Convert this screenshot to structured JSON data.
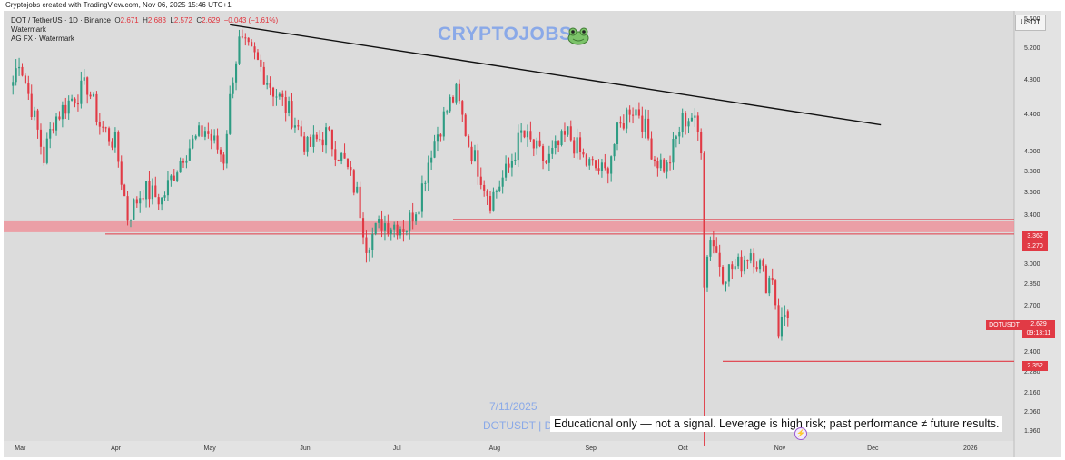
{
  "header": {
    "created_by": "Cryptojobs created with TradingView.com, Nov 06, 2025 15:46 UTC+1"
  },
  "legend": {
    "symbol": "DOT / TetherUS · 1D · Binance",
    "open_label": "O",
    "open": "2.671",
    "high_label": "H",
    "high": "2.683",
    "low_label": "L",
    "low": "2.572",
    "close_label": "C",
    "close": "2.629",
    "change": "−0.043 (−1.61%)",
    "watermark_line1": "Watermark",
    "watermark_line2": "AG FX · Watermark"
  },
  "logo": {
    "text": "CRYPTOJOBS",
    "icon": "frog-icon"
  },
  "currency": "USDT",
  "watermark": {
    "date": "7/11/2025",
    "symbol": "DOTUSDT | D"
  },
  "disclaimer": "Educational only — not a signal. Leverage is high risk; past performance ≠ future results.",
  "colors": {
    "up": "#2e9c83",
    "down": "#e13a45",
    "zone": "#f08b94",
    "trendline": "#111111",
    "accent": "#8aa9e8"
  },
  "badges": {
    "zone_top": "3.362",
    "zone_bottom": "3.270",
    "support": "2.352",
    "symbol_tag": "DOTUSDT",
    "last_price": "2.629",
    "countdown": "09:13:11"
  },
  "chart_data": {
    "type": "candlestick",
    "symbol": "DOTUSDT",
    "timeframe": "1D",
    "scale": "log",
    "y_ticks": [
      "5.600",
      "5.200",
      "4.800",
      "4.400",
      "4.000",
      "3.800",
      "3.600",
      "3.400",
      "3.200",
      "3.000",
      "2.850",
      "2.700",
      "2.550",
      "2.400",
      "2.280",
      "2.160",
      "2.060",
      "1.960"
    ],
    "x_ticks": [
      "Mar",
      "Apr",
      "May",
      "Jun",
      "Jul",
      "Aug",
      "Sep",
      "Oct",
      "Nov",
      "Dec",
      "2026"
    ],
    "ylim": [
      1.92,
      5.75
    ],
    "anchors": [
      [
        "2025-03-01",
        4.8
      ],
      [
        "2025-03-03",
        5.1
      ],
      [
        "2025-03-07",
        4.5
      ],
      [
        "2025-03-11",
        3.95
      ],
      [
        "2025-03-14",
        4.35
      ],
      [
        "2025-03-20",
        4.6
      ],
      [
        "2025-03-25",
        4.75
      ],
      [
        "2025-03-29",
        4.3
      ],
      [
        "2025-04-03",
        4.1
      ],
      [
        "2025-04-07",
        3.4
      ],
      [
        "2025-04-12",
        3.65
      ],
      [
        "2025-04-18",
        3.55
      ],
      [
        "2025-04-25",
        4.0
      ],
      [
        "2025-05-02",
        4.25
      ],
      [
        "2025-05-08",
        3.95
      ],
      [
        "2025-05-11",
        4.9
      ],
      [
        "2025-05-13",
        5.3
      ],
      [
        "2025-05-18",
        5.1
      ],
      [
        "2025-05-24",
        4.7
      ],
      [
        "2025-05-30",
        4.4
      ],
      [
        "2025-06-04",
        4.05
      ],
      [
        "2025-06-10",
        4.2
      ],
      [
        "2025-06-16",
        3.9
      ],
      [
        "2025-06-20",
        3.6
      ],
      [
        "2025-06-23",
        3.18
      ],
      [
        "2025-06-28",
        3.35
      ],
      [
        "2025-07-06",
        3.32
      ],
      [
        "2025-07-10",
        3.55
      ],
      [
        "2025-07-14",
        4.05
      ],
      [
        "2025-07-20",
        4.55
      ],
      [
        "2025-07-22",
        4.65
      ],
      [
        "2025-07-26",
        4.1
      ],
      [
        "2025-08-02",
        3.55
      ],
      [
        "2025-08-08",
        3.85
      ],
      [
        "2025-08-12",
        4.2
      ],
      [
        "2025-08-15",
        4.1
      ],
      [
        "2025-08-20",
        3.9
      ],
      [
        "2025-08-27",
        4.2
      ],
      [
        "2025-09-02",
        3.9
      ],
      [
        "2025-09-08",
        3.8
      ],
      [
        "2025-09-12",
        4.2
      ],
      [
        "2025-09-16",
        4.5
      ],
      [
        "2025-09-19",
        4.45
      ],
      [
        "2025-09-24",
        3.95
      ],
      [
        "2025-09-28",
        3.85
      ],
      [
        "2025-10-03",
        4.35
      ],
      [
        "2025-10-06",
        4.4
      ],
      [
        "2025-10-09",
        4.1
      ],
      [
        "2025-10-10",
        2.9
      ],
      [
        "2025-10-12",
        3.25
      ],
      [
        "2025-10-16",
        2.95
      ],
      [
        "2025-10-21",
        3.0
      ],
      [
        "2025-10-25",
        3.12
      ],
      [
        "2025-10-28",
        3.0
      ],
      [
        "2025-10-30",
        2.88
      ],
      [
        "2025-11-01",
        2.93
      ],
      [
        "2025-11-03",
        2.55
      ],
      [
        "2025-11-05",
        2.65
      ],
      [
        "2025-11-06",
        2.629
      ]
    ],
    "levels": {
      "resistance_zone": [
        3.27,
        3.362
      ],
      "support": 2.352,
      "trendline": [
        [
          "2025-05-10",
          5.55
        ],
        [
          "2025-12-06",
          4.3
        ]
      ]
    },
    "last": {
      "open": 2.671,
      "high": 2.683,
      "low": 2.572,
      "close": 2.629
    }
  }
}
